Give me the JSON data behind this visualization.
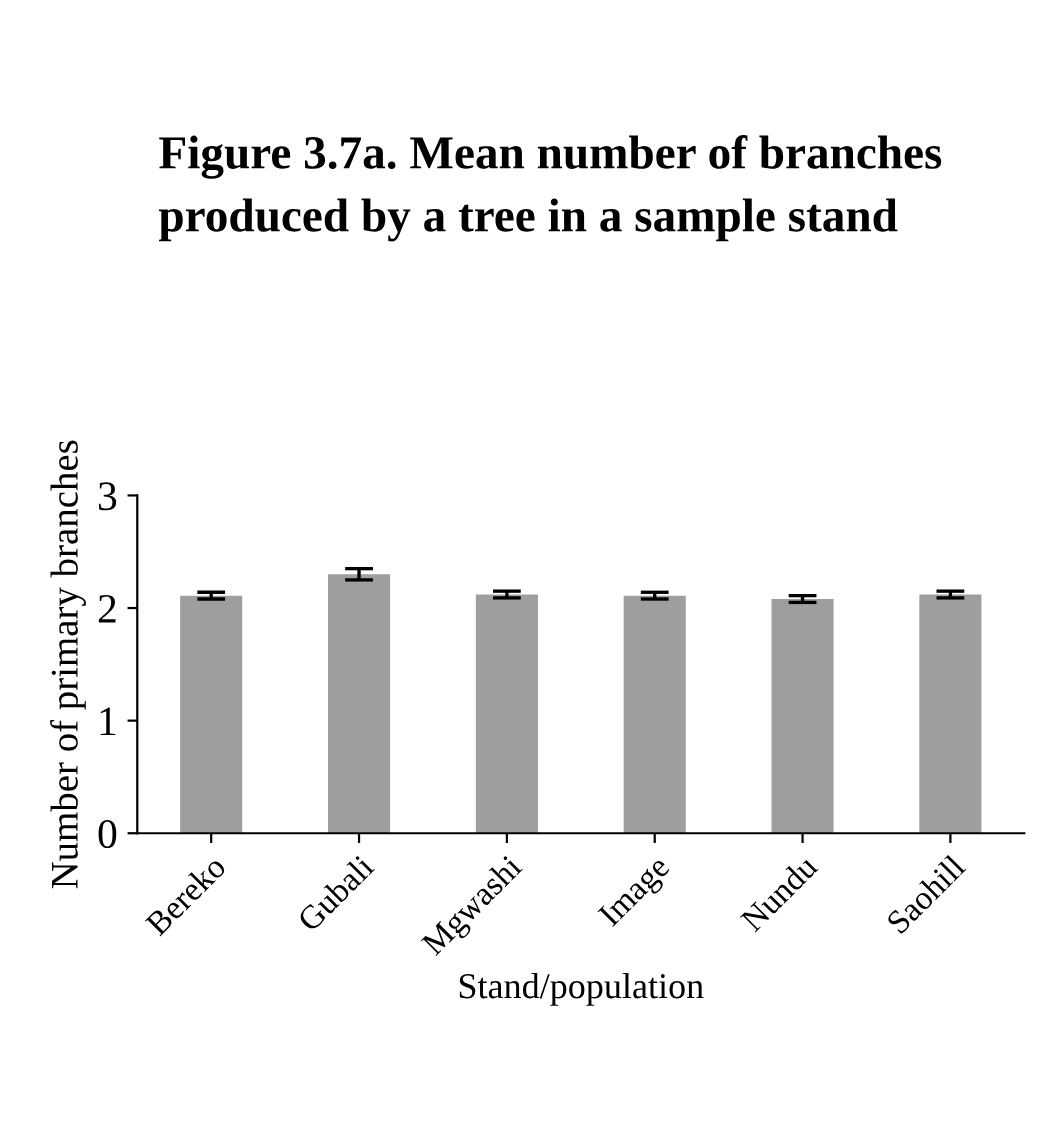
{
  "chart_data": {
    "type": "bar",
    "title": "Figure 3.7a. Mean number of branches produced by a tree in a sample stand",
    "xlabel": "Stand/population",
    "ylabel": "Number of primary branches",
    "categories": [
      "Bereko",
      "Gubali",
      "Mgwashi",
      "Image",
      "Nundu",
      "Saohill"
    ],
    "values": [
      2.11,
      2.3,
      2.12,
      2.11,
      2.08,
      2.12
    ],
    "errors": [
      0.03,
      0.05,
      0.03,
      0.03,
      0.03,
      0.03
    ],
    "color": "#9e9e9e",
    "ylim": [
      0,
      3
    ],
    "yticks": [
      0,
      1,
      2,
      3
    ],
    "grid": false,
    "legend": false
  }
}
